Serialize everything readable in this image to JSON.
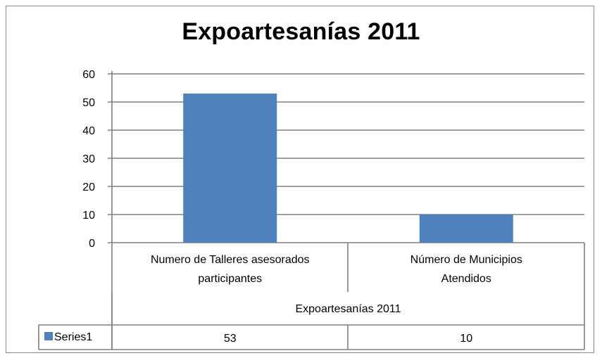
{
  "chart_data": {
    "type": "bar",
    "title": "Expoartesanías 2011",
    "group_label": "Expoartesanías  2011",
    "categories": [
      [
        "Numero de Talleres asesorados",
        "participantes"
      ],
      [
        "Número de Municipios",
        "Atendidos"
      ]
    ],
    "series": [
      {
        "name": "Series1",
        "values": [
          53,
          10
        ],
        "value_labels": [
          "53",
          "10"
        ],
        "color": "#4f81bd"
      }
    ],
    "yticks": [
      "0",
      "10",
      "20",
      "30",
      "40",
      "50",
      "60"
    ],
    "ylim": [
      0,
      60
    ],
    "grid": true,
    "legend": "data-table"
  },
  "colors": {
    "bar": "#4f81bd",
    "grid": "#808080",
    "frame": "#8c8c8c"
  }
}
